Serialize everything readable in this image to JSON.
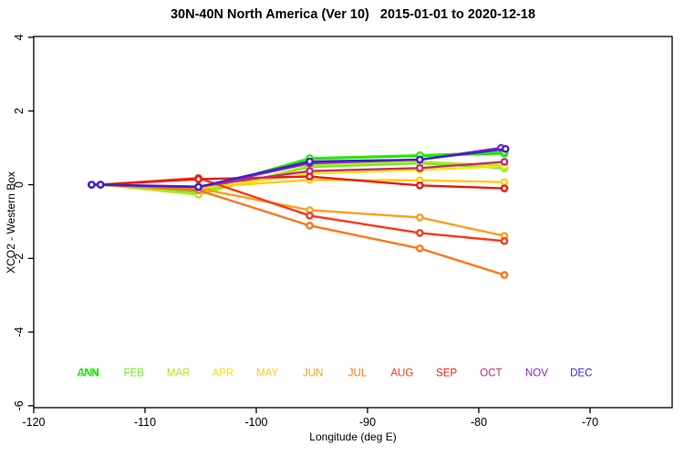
{
  "chart_data": {
    "type": "line",
    "title": "30N-40N North America (Ver 10)   2015-01-01 to 2020-12-18",
    "xlabel": "Longitude (deg E)",
    "ylabel": "XCO2 - Western Box",
    "xlim": [
      -120,
      -62.6
    ],
    "ylim": [
      -6,
      4
    ],
    "xticks": [
      -120,
      -110,
      -100,
      -90,
      -80,
      -70
    ],
    "yticks": [
      -6,
      -4,
      -2,
      0,
      2,
      4
    ],
    "grid": false,
    "legend_position": "inside-bottom-row",
    "legend_y": -5.1,
    "legend": [
      {
        "label": "ANN",
        "lon": -115.1,
        "color": "#00dc00"
      },
      {
        "label": "JAN",
        "lon": -115.1,
        "color": "#2fe800"
      },
      {
        "label": "FEB",
        "lon": -111.0,
        "color": "#6aeb24"
      },
      {
        "label": "MAR",
        "lon": -107.0,
        "color": "#b4e61e"
      },
      {
        "label": "APR",
        "lon": -103.0,
        "color": "#f0e614"
      },
      {
        "label": "MAY",
        "lon": -99.0,
        "color": "#ffcc11"
      },
      {
        "label": "JUN",
        "lon": -94.9,
        "color": "#ff9d1e"
      },
      {
        "label": "JUL",
        "lon": -90.9,
        "color": "#ff7519"
      },
      {
        "label": "AUG",
        "lon": -86.9,
        "color": "#ff3714"
      },
      {
        "label": "SEP",
        "lon": -82.9,
        "color": "#eb190f"
      },
      {
        "label": "OCT",
        "lon": -78.9,
        "color": "#c62a70"
      },
      {
        "label": "NOV",
        "lon": -74.8,
        "color": "#8a2bbe"
      },
      {
        "label": "DEC",
        "lon": -70.8,
        "color": "#3e22cd"
      }
    ],
    "series": [
      {
        "name": "ANN",
        "color": "#00dc00",
        "x": [
          -114.8,
          -114.0,
          -105.2,
          -95.2,
          -85.3,
          -77.7
        ],
        "y": [
          0,
          0,
          -0.18,
          0.7,
          0.78,
          0.85
        ]
      },
      {
        "name": "JAN",
        "color": "#2fe800",
        "x": [
          -114.8,
          -114.0,
          -105.2,
          -95.2,
          -85.3,
          -77.7
        ],
        "y": [
          0,
          0,
          -0.15,
          0.72,
          0.8,
          0.88
        ]
      },
      {
        "name": "FEB",
        "color": "#6aeb24",
        "x": [
          -114.8,
          -114.0,
          -105.2,
          -95.2,
          -85.3,
          -77.7
        ],
        "y": [
          0,
          0,
          -0.22,
          0.48,
          0.58,
          0.45
        ]
      },
      {
        "name": "MAR",
        "color": "#b4e61e",
        "x": [
          -114.8,
          -114.0,
          -105.2,
          -95.2,
          -85.3,
          -77.7
        ],
        "y": [
          0,
          0,
          -0.27,
          0.52,
          0.62,
          0.52
        ]
      },
      {
        "name": "APR",
        "color": "#f0e614",
        "x": [
          -114.8,
          -114.0,
          -105.2,
          -95.2,
          -85.3,
          -77.7
        ],
        "y": [
          0,
          0,
          -0.12,
          0.3,
          0.4,
          0.5
        ]
      },
      {
        "name": "MAY",
        "color": "#ffcc11",
        "x": [
          -114.8,
          -114.0,
          -105.2,
          -95.2,
          -85.3,
          -77.7
        ],
        "y": [
          0,
          0,
          -0.08,
          0.13,
          0.12,
          0.07
        ]
      },
      {
        "name": "JUN",
        "color": "#ff9d1e",
        "x": [
          -114.8,
          -114.0,
          -105.2,
          -95.2,
          -85.3,
          -77.7
        ],
        "y": [
          0,
          0,
          -0.1,
          -0.69,
          -0.89,
          -1.39
        ]
      },
      {
        "name": "JUL",
        "color": "#ff7519",
        "x": [
          -114.8,
          -114.0,
          -105.2,
          -95.2,
          -85.3,
          -77.7
        ],
        "y": [
          0,
          0,
          -0.15,
          -1.11,
          -1.73,
          -2.45
        ]
      },
      {
        "name": "AUG",
        "color": "#ff3714",
        "x": [
          -114.8,
          -114.0,
          -105.2,
          -95.2,
          -85.3,
          -77.7
        ],
        "y": [
          0,
          0,
          0.18,
          -0.84,
          -1.31,
          -1.53
        ]
      },
      {
        "name": "SEP",
        "color": "#eb190f",
        "x": [
          -114.8,
          -114.0,
          -105.2,
          -95.2,
          -85.3,
          -77.7
        ],
        "y": [
          0,
          0,
          0.15,
          0.22,
          -0.02,
          -0.1
        ]
      },
      {
        "name": "OCT",
        "color": "#c62a70",
        "x": [
          -114.8,
          -114.0,
          -105.2,
          -95.2,
          -85.3,
          -77.7
        ],
        "y": [
          0,
          0,
          -0.05,
          0.37,
          0.45,
          0.62
        ]
      },
      {
        "name": "NOV",
        "color": "#8a2bbe",
        "x": [
          -114.8,
          -114.0,
          -105.2,
          -95.2,
          -85.3,
          -78.0
        ],
        "y": [
          0,
          0,
          -0.07,
          0.58,
          0.68,
          1.0
        ]
      },
      {
        "name": "DEC",
        "color": "#3e22cd",
        "x": [
          -114.8,
          -114.0,
          -105.2,
          -95.2,
          -85.3,
          -77.6
        ],
        "y": [
          0,
          0,
          -0.06,
          0.63,
          0.68,
          0.97
        ]
      }
    ]
  }
}
